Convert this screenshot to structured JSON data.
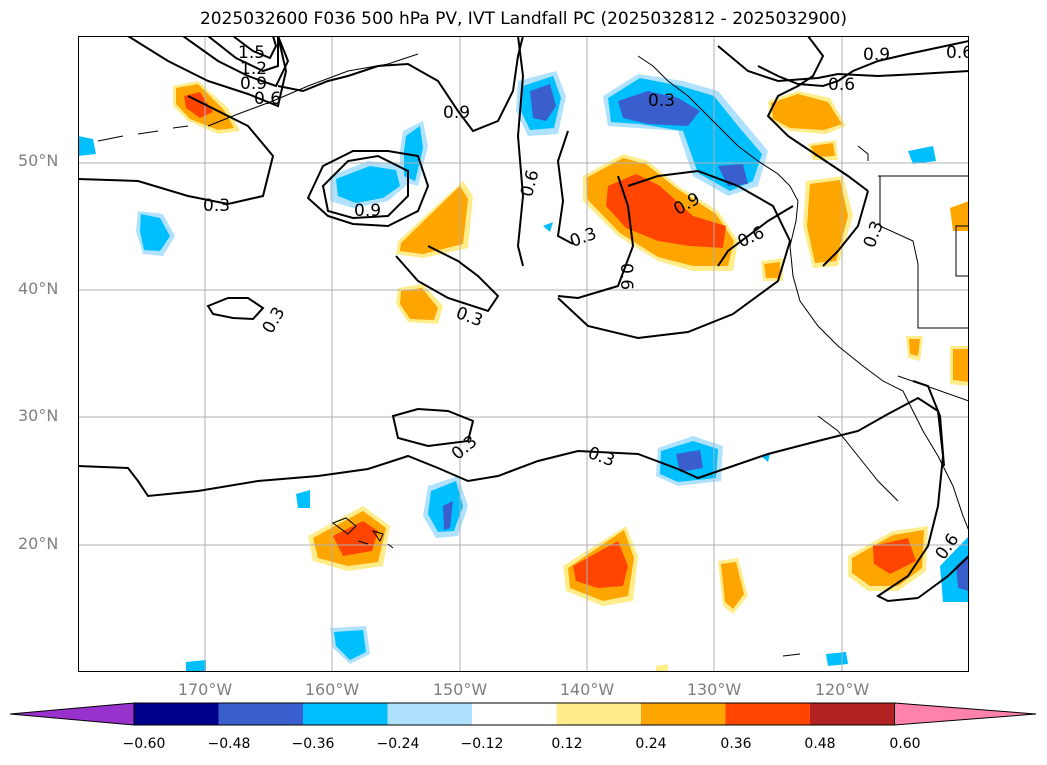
{
  "title": "2025032600 F036 500 hPa PV, IVT Landfall PC (2025032812 - 2025032900)",
  "lat_labels": [
    "50°N",
    "40°N",
    "30°N",
    "20°N"
  ],
  "lon_labels": [
    "170°W",
    "160°W",
    "150°W",
    "140°W",
    "130°W",
    "120°W"
  ],
  "contour_labels": {
    "c15": "1.5",
    "c12": "1.2",
    "c09a": "0.9",
    "c06a": "0.6",
    "c09b": "0.9",
    "c06b": "0.6",
    "c03a": "0.3",
    "c09c": "0.9",
    "c06c": "0.6",
    "c03b": "0.3",
    "c06d": "0.6",
    "c03c": "0.3",
    "c09d": "0.9",
    "c06e": "0.6",
    "c09e": "0.9",
    "c06f": "0.6",
    "c03d": "0.3",
    "c03e": "0.3",
    "c03f": "0.3",
    "c03g": "0.3",
    "c06g": "0.6",
    "c03h": "0.3"
  },
  "colorbar": {
    "ticks": [
      "−0.60",
      "−0.48",
      "−0.36",
      "−0.24",
      "−0.12",
      "0.12",
      "0.24",
      "0.36",
      "0.48",
      "0.60"
    ],
    "colors": [
      "#9932cc",
      "#00008b",
      "#3a5fcd",
      "#00bfff",
      "#b0e2ff",
      "#ffffff",
      "#ffec8b",
      "#ffa500",
      "#ff4500",
      "#b22222",
      "#ff82ab"
    ]
  }
}
